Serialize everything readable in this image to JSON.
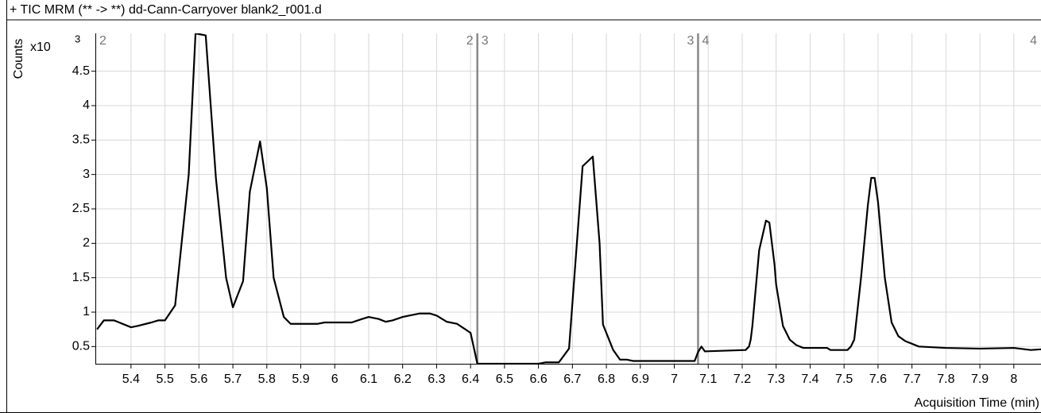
{
  "chart_data": {
    "type": "line",
    "title": "+ TIC MRM (** -> **) dd-Cann-Carryover blank2_r001.d",
    "ylabel": "Counts",
    "xlabel": "Acquisition Time (min)",
    "y_scale_label": "x10",
    "y_scale_exponent": "3",
    "xlim": [
      5.295,
      8.08
    ],
    "ylim": [
      0.25,
      5.05
    ],
    "xticks": [
      5.4,
      5.5,
      5.6,
      5.7,
      5.8,
      5.9,
      6,
      6.1,
      6.2,
      6.3,
      6.4,
      6.5,
      6.6,
      6.7,
      6.8,
      6.9,
      7,
      7.1,
      7.2,
      7.3,
      7.4,
      7.5,
      7.6,
      7.7,
      7.8,
      7.9,
      8
    ],
    "yticks": [
      0.5,
      1,
      1.5,
      2,
      2.5,
      3,
      3.5,
      4,
      4.5
    ],
    "grid": true,
    "segments": [
      {
        "label": "2",
        "range": [
          5.295,
          6.42
        ]
      },
      {
        "label": "3",
        "range": [
          6.42,
          7.07
        ]
      },
      {
        "label": "4",
        "range": [
          7.07,
          8.08
        ]
      }
    ],
    "series": [
      {
        "color": "#000000",
        "x": [
          5.3,
          5.32,
          5.35,
          5.4,
          5.42,
          5.46,
          5.48,
          5.5,
          5.53,
          5.57,
          5.59,
          5.62,
          5.65,
          5.68,
          5.7,
          5.73,
          5.75,
          5.78,
          5.8,
          5.82,
          5.85,
          5.87,
          5.9,
          5.95,
          5.97,
          6.05,
          6.08,
          6.1,
          6.13,
          6.15,
          6.17,
          6.2,
          6.23,
          6.25,
          6.28,
          6.3,
          6.33,
          6.36,
          6.4,
          6.42,
          6.6,
          6.62,
          6.66,
          6.69,
          6.73,
          6.76,
          6.78,
          6.79,
          6.82,
          6.84,
          6.86,
          6.88,
          7.06,
          7.07,
          7.08,
          7.09,
          7.21,
          7.22,
          7.225,
          7.23,
          7.25,
          7.27,
          7.28,
          7.295,
          7.3,
          7.32,
          7.34,
          7.36,
          7.38,
          7.45,
          7.46,
          7.51,
          7.52,
          7.53,
          7.55,
          7.57,
          7.58,
          7.59,
          7.6,
          7.62,
          7.64,
          7.66,
          7.68,
          7.72,
          7.8,
          7.9,
          8,
          8.05,
          8.08
        ],
        "values": [
          0.75,
          0.88,
          0.88,
          0.78,
          0.8,
          0.85,
          0.88,
          0.88,
          1.1,
          3.0,
          5.05,
          5.02,
          2.95,
          1.5,
          1.07,
          1.45,
          2.75,
          3.48,
          2.8,
          1.5,
          0.93,
          0.83,
          0.83,
          0.83,
          0.85,
          0.85,
          0.9,
          0.93,
          0.9,
          0.86,
          0.88,
          0.93,
          0.96,
          0.98,
          0.98,
          0.95,
          0.86,
          0.83,
          0.7,
          0.25,
          0.25,
          0.27,
          0.27,
          0.47,
          3.12,
          3.26,
          2.0,
          0.82,
          0.45,
          0.31,
          0.31,
          0.29,
          0.29,
          0.42,
          0.5,
          0.43,
          0.45,
          0.5,
          0.6,
          0.8,
          1.9,
          2.33,
          2.3,
          1.7,
          1.4,
          0.8,
          0.6,
          0.52,
          0.48,
          0.48,
          0.45,
          0.45,
          0.5,
          0.6,
          1.5,
          2.55,
          2.95,
          2.95,
          2.6,
          1.5,
          0.85,
          0.65,
          0.58,
          0.5,
          0.48,
          0.47,
          0.48,
          0.45,
          0.46
        ]
      }
    ]
  }
}
